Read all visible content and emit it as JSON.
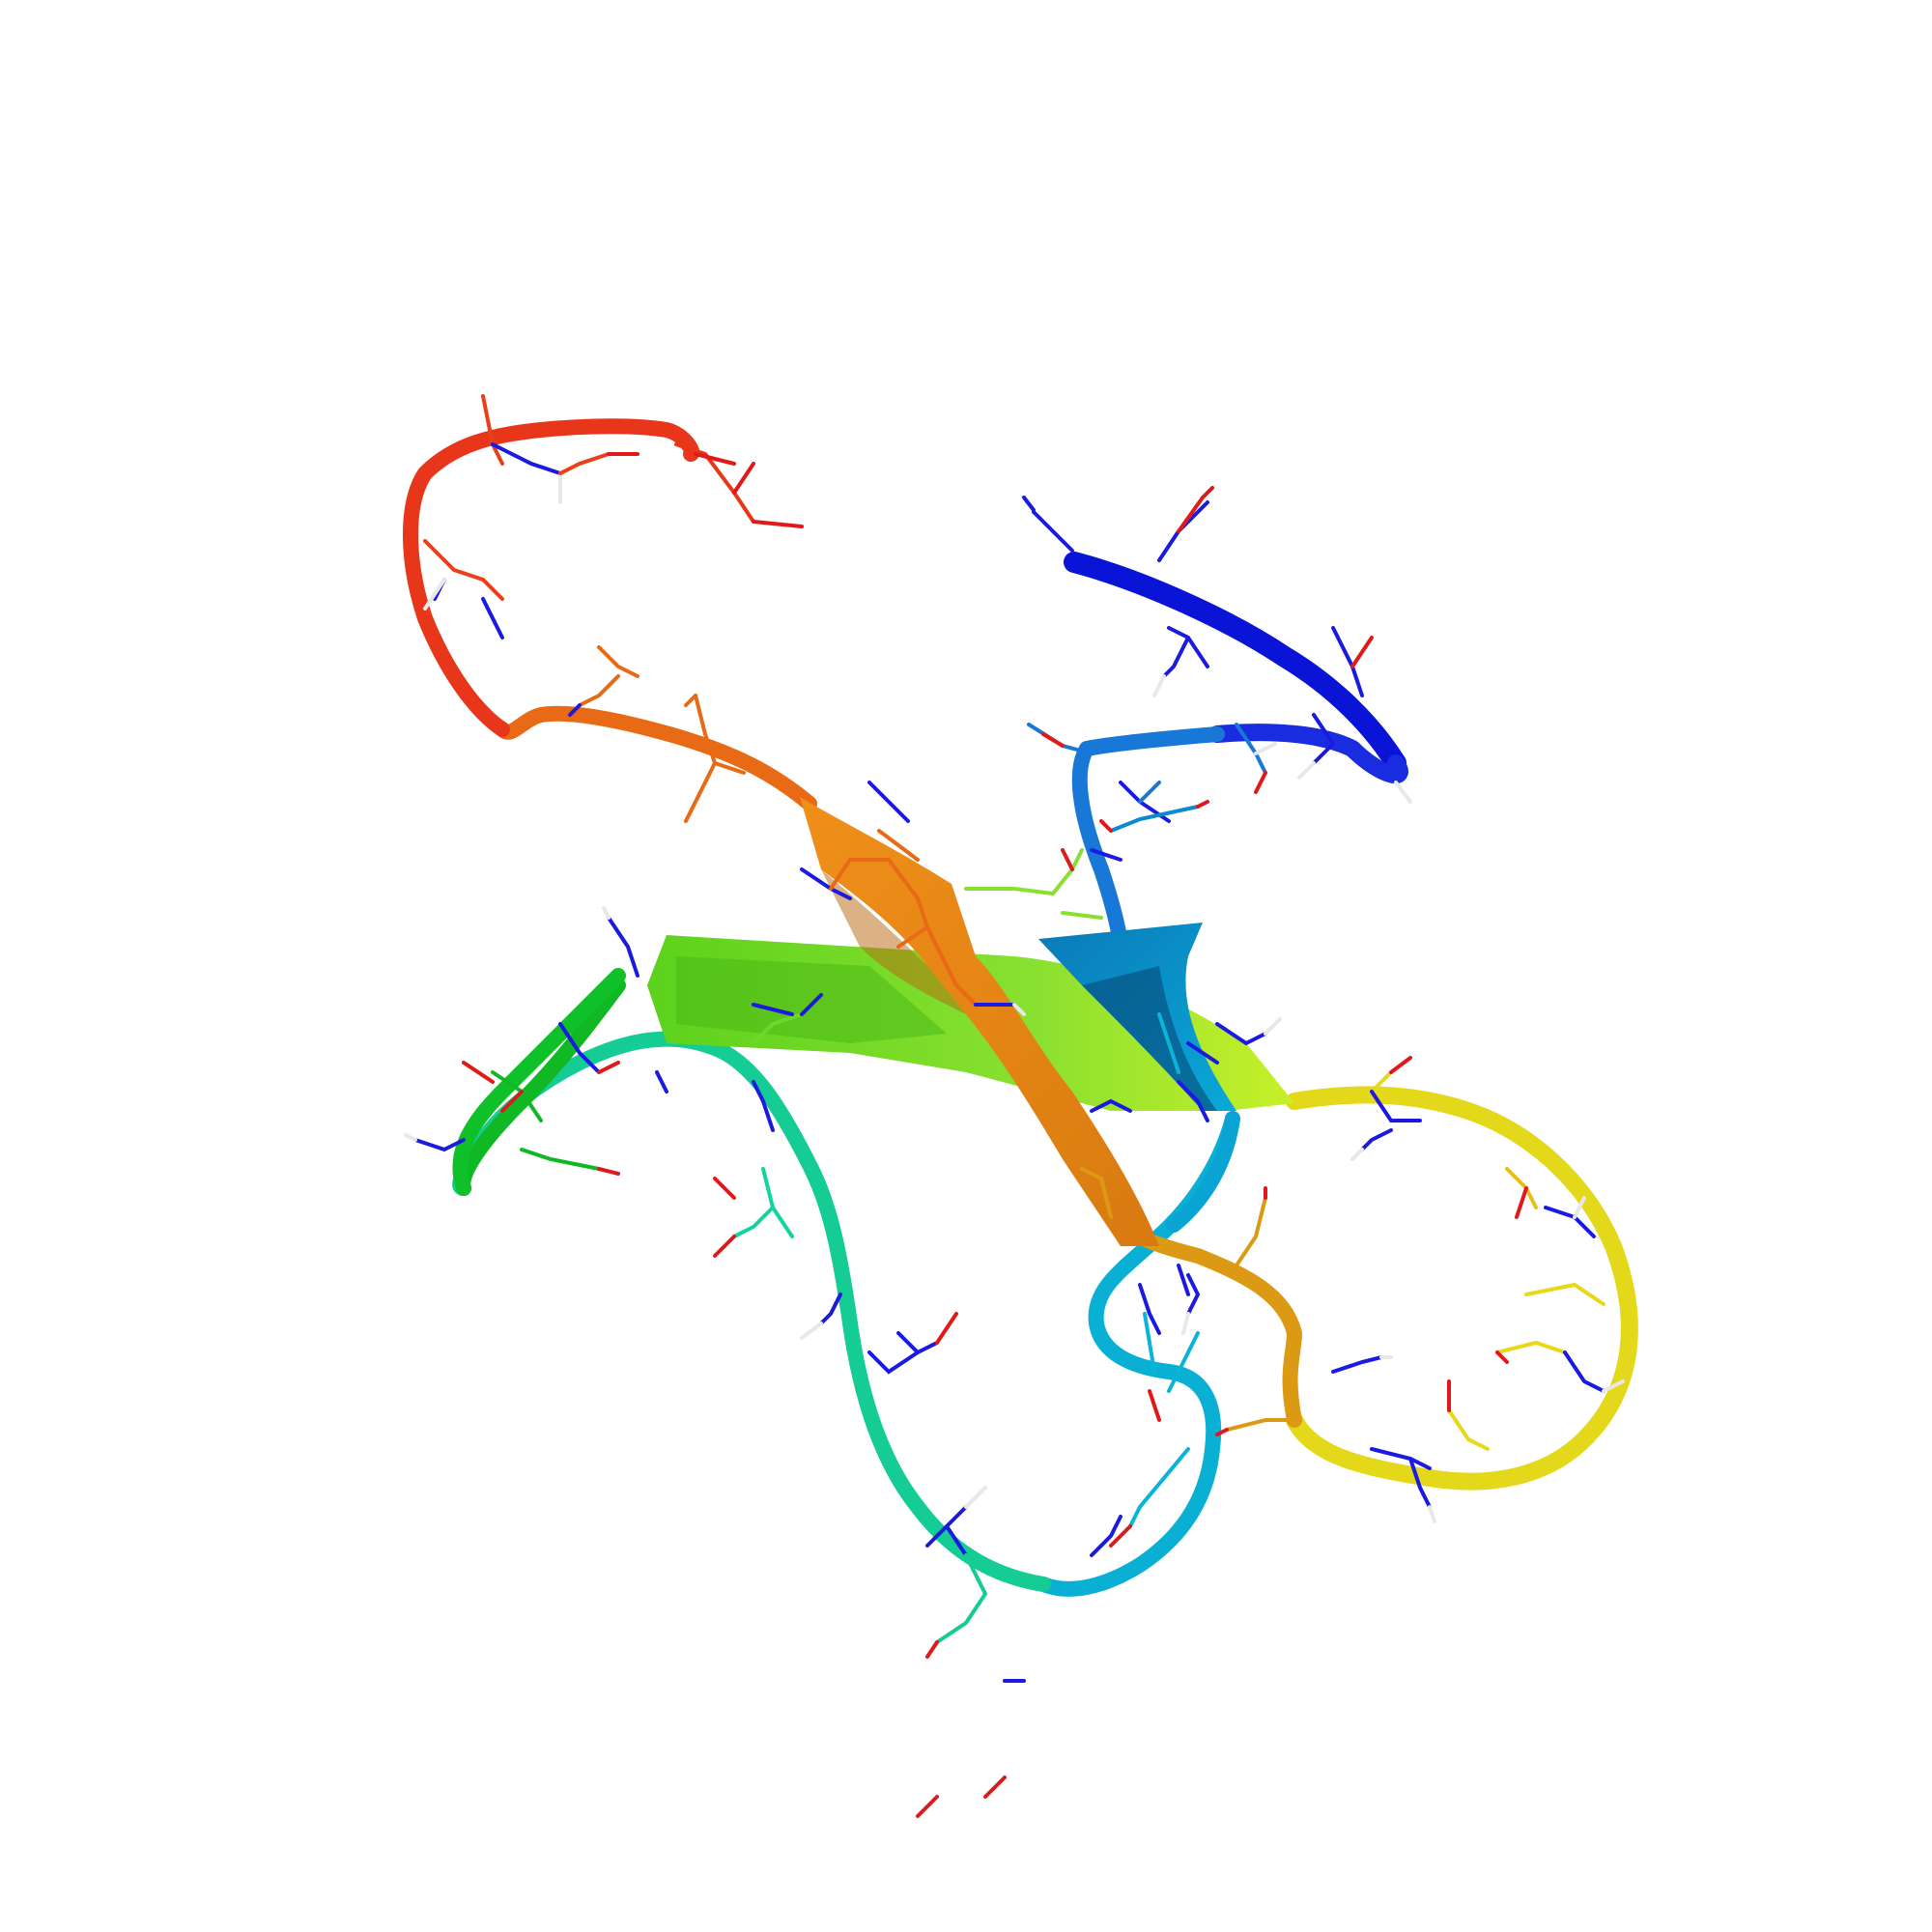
{
  "viewer": {
    "background": "#ffffff"
  },
  "structure": {
    "style": "cartoon with sticks",
    "coloring": "rainbow N-to-C",
    "segment_colors": [
      "#0a14d6",
      "#2a64e8",
      "#0a8ad0",
      "#0ab4d8",
      "#14d8c8",
      "#12d4a0",
      "#0cc84a",
      "#22c81a",
      "#6cd82a",
      "#c6f024",
      "#e8e21a",
      "#e8b41a",
      "#e48c14",
      "#e86414",
      "#e8401a",
      "#e81a1a"
    ],
    "atom_colors": {
      "nitrogen": "#1a1ae0",
      "oxygen": "#e01a1a",
      "hydrogen": "#e8e8e8"
    }
  }
}
